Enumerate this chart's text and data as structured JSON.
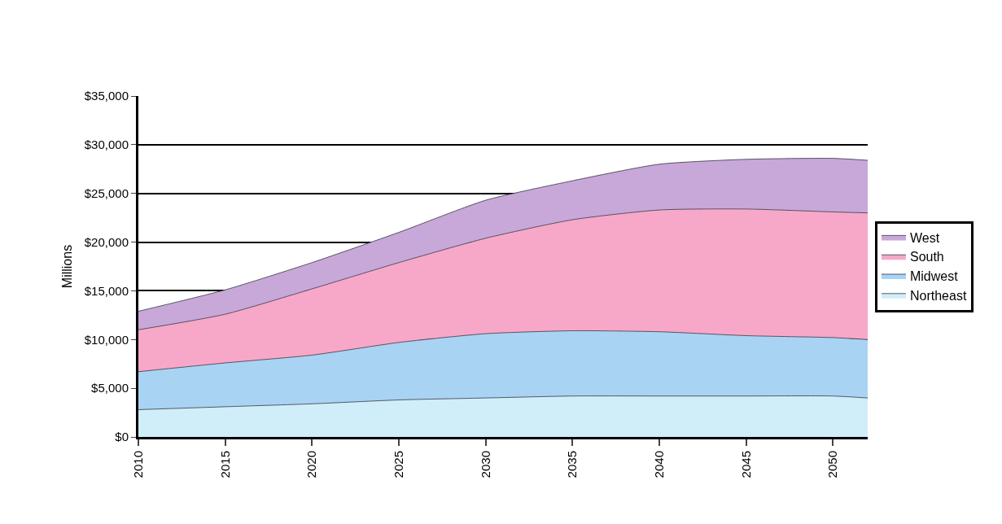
{
  "chart_data": {
    "type": "area",
    "stacked": true,
    "ylabel": "Millions",
    "x": [
      2010,
      2015,
      2020,
      2025,
      2030,
      2035,
      2040,
      2045,
      2050,
      2052
    ],
    "xlim": [
      2010,
      2052
    ],
    "xticks": [
      2010,
      2015,
      2020,
      2025,
      2030,
      2035,
      2040,
      2045,
      2050
    ],
    "ylim": [
      0,
      35000
    ],
    "yticks": [
      {
        "value": 0,
        "label": "$0"
      },
      {
        "value": 5000,
        "label": "$5,000"
      },
      {
        "value": 10000,
        "label": "$10,000"
      },
      {
        "value": 15000,
        "label": "$15,000"
      },
      {
        "value": 20000,
        "label": "$20,000"
      },
      {
        "value": 25000,
        "label": "$25,000"
      },
      {
        "value": 30000,
        "label": "$30,000"
      },
      {
        "value": 35000,
        "label": "$35,000"
      }
    ],
    "grid": "y",
    "legend": "right",
    "marker": "none",
    "line_style": "solid",
    "series": [
      {
        "name": "Northeast",
        "color": "#cfeefa",
        "values": [
          2800,
          3100,
          3400,
          3800,
          4000,
          4200,
          4200,
          4200,
          4200,
          4000
        ]
      },
      {
        "name": "Midwest",
        "color": "#a9d3f2",
        "values": [
          3900,
          4500,
          5000,
          5900,
          6600,
          6700,
          6600,
          6200,
          6000,
          6000
        ]
      },
      {
        "name": "South",
        "color": "#f7a8c9",
        "values": [
          4300,
          5000,
          6800,
          8200,
          9800,
          11400,
          12500,
          13000,
          12900,
          13000
        ]
      },
      {
        "name": "West",
        "color": "#c8a8d8",
        "values": [
          1900,
          2500,
          2700,
          3100,
          3900,
          4000,
          4700,
          5100,
          5500,
          5400
        ]
      }
    ]
  }
}
